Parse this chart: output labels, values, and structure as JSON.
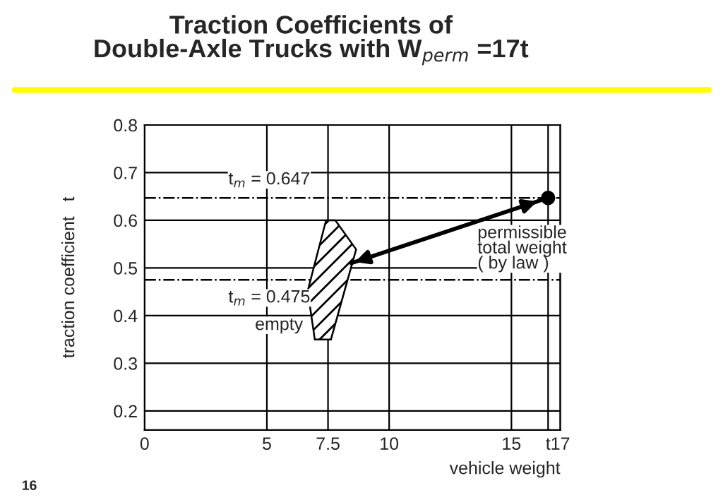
{
  "chart_data": {
    "type": "scatter",
    "title": "Traction Coefficients of\nDouble-Axle Trucks with W$_{perm}$ =17t",
    "xlabel": "vehicle weight",
    "ylabel": "traction coefficient   t",
    "xlim": [
      0,
      17
    ],
    "xticks": [
      0,
      5,
      7.5,
      10,
      15,
      {
        "value": 16.5,
        "label": "t"
      },
      17
    ],
    "ylim": [
      0.16,
      0.8
    ],
    "yticks": [
      0.2,
      0.3,
      0.4,
      0.5,
      0.6,
      0.7,
      0.8
    ],
    "grid": true,
    "series": [
      {
        "type": "area",
        "x": [
          7.42,
          7.8,
          8.65,
          7.62,
          6.96,
          6.67
        ],
        "values": [
          0.6,
          0.6,
          0.539,
          0.35,
          0.35,
          0.452
        ],
        "color": "#000000"
      },
      {
        "x": [
          16.5
        ],
        "values": [
          0.647
        ],
        "color": "#000000"
      },
      {
        "type": "line",
        "x": [
          8.45,
          16.2
        ],
        "values": [
          0.51,
          0.642
        ],
        "color": "#000000"
      }
    ],
    "ref_lines": [
      {
        "axis": "y",
        "value": 0.647,
        "label": "t$_{m}$ = 0.647",
        "line_style": "dashdot",
        "color": "#000000"
      },
      {
        "axis": "y",
        "value": 0.475,
        "label": "t$_{m}$ = 0.475",
        "line_style": "dashdot",
        "color": "#000000"
      }
    ],
    "annotations": [
      {
        "text": "empty",
        "x": 6.96,
        "y": 0.35
      },
      {
        "text": "permissible\ntotal weight\n( by law )",
        "x": 16.5,
        "y": 0.647
      },
      "16"
    ]
  }
}
